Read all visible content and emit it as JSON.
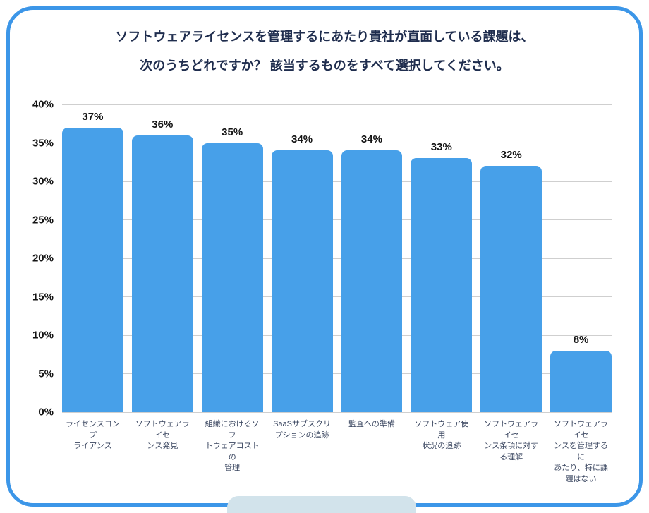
{
  "title": {
    "lines": [
      "ソフトウェアライセンスを管理するにあたり貴社が直面している課題は、",
      "次のうちどれですか？ 該当するものをすべて選択してください。"
    ]
  },
  "chart_data": {
    "type": "bar",
    "title": "ソフトウェアライセンスを管理するにあたり貴社が直面している課題は、次のうちどれですか？ 該当するものをすべて選択してください。",
    "categories": [
      "ライセンスコンプライアンス",
      "ソフトウェアライセンス発見",
      "組織におけるソフトウェアコストの管理",
      "SaaSサブスクリプションの追跡",
      "監査への準備",
      "ソフトウェア使用状況の追跡",
      "ソフトウェアライセンス条項に対する理解",
      "ソフトウェアライセンスを管理するにあたり、特に課題はない"
    ],
    "categories_wrapped": [
      [
        "ライセンスコンプ",
        "ライアンス"
      ],
      [
        "ソフトウェアライセ",
        "ンス発見"
      ],
      [
        "組織におけるソフ",
        "トウェアコストの",
        "管理"
      ],
      [
        "SaaSサブスクリ",
        "プションの追跡"
      ],
      [
        "監査への準備"
      ],
      [
        "ソフトウェア使用",
        "状況の追跡"
      ],
      [
        "ソフトウェアライセ",
        "ンス条項に対す",
        "る理解"
      ],
      [
        "ソフトウェアライセ",
        "ンスを管理するに",
        "あたり、特に課",
        "題はない"
      ]
    ],
    "values": [
      37,
      36,
      35,
      34,
      34,
      33,
      32,
      8
    ],
    "value_labels": [
      "37%",
      "36%",
      "35%",
      "34%",
      "34%",
      "33%",
      "32%",
      "8%"
    ],
    "unit": "%",
    "xlabel": "",
    "ylabel": "",
    "ylim": [
      0,
      40
    ],
    "ytick_step": 5,
    "yticks": [
      "0%",
      "5%",
      "10%",
      "15%",
      "20%",
      "25%",
      "30%",
      "35%",
      "40%"
    ],
    "grid": true,
    "legend": "none"
  },
  "colors": {
    "border": "#3c96e8",
    "bar": "#47a0e9",
    "title_text": "#1f2d4e",
    "axis_value_text": "#141414",
    "category_text": "#3a4660",
    "gridline": "#cfcfcf",
    "bottom_tab": "#d2e3eb",
    "background": "#ffffff"
  }
}
